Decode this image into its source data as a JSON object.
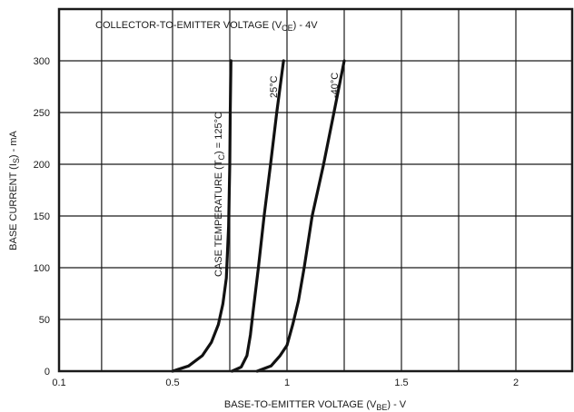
{
  "chart_data": {
    "type": "line",
    "title": "",
    "condition": {
      "label": "COLLECTOR-TO-EMITTER VOLTAGE (V",
      "subscript": "CE",
      "suffix": ") - 4V"
    },
    "xlabel": {
      "label": "BASE-TO-EMITTER VOLTAGE (V",
      "subscript": "BE",
      "suffix": ") - V"
    },
    "ylabel": {
      "label": "BASE CURRENT (I",
      "subscript": "S",
      "suffix": ") - mA"
    },
    "xlim": [
      0.1,
      2.25
    ],
    "ylim": [
      0,
      350
    ],
    "x_ticks": [
      {
        "value": 0.1,
        "label": "0.1"
      },
      {
        "value": 0.5,
        "label": "0.5"
      },
      {
        "value": 1,
        "label": "1"
      },
      {
        "value": 1.5,
        "label": "1.5"
      },
      {
        "value": 2,
        "label": "2"
      }
    ],
    "y_ticks": [
      {
        "value": 0,
        "label": "0"
      },
      {
        "value": 50,
        "label": "50"
      },
      {
        "value": 100,
        "label": "100"
      },
      {
        "value": 150,
        "label": "150"
      },
      {
        "value": 200,
        "label": "200"
      },
      {
        "value": 250,
        "label": "250"
      },
      {
        "value": 300,
        "label": "300"
      }
    ],
    "x_gridlines": [
      0.1,
      0.25,
      0.5,
      0.75,
      1,
      1.25,
      1.5,
      1.75,
      2
    ],
    "y_gridlines": [
      0,
      50,
      100,
      150,
      200,
      250,
      300
    ],
    "grid": true,
    "series": [
      {
        "label": {
          "text": "CASE TEMPERATURE (T",
          "subscript": "C",
          "suffix": ") = 125°C"
        },
        "points": [
          [
            0.5,
            0
          ],
          [
            0.57,
            5
          ],
          [
            0.63,
            15
          ],
          [
            0.67,
            28
          ],
          [
            0.7,
            45
          ],
          [
            0.72,
            65
          ],
          [
            0.735,
            90
          ],
          [
            0.745,
            140
          ],
          [
            0.75,
            200
          ],
          [
            0.752,
            250
          ],
          [
            0.755,
            300
          ]
        ]
      },
      {
        "label": {
          "text": "25°C"
        },
        "points": [
          [
            0.76,
            0
          ],
          [
            0.8,
            4
          ],
          [
            0.825,
            15
          ],
          [
            0.84,
            35
          ],
          [
            0.853,
            60
          ],
          [
            0.875,
            100
          ],
          [
            0.9,
            150
          ],
          [
            0.928,
            200
          ],
          [
            0.955,
            250
          ],
          [
            0.985,
            300
          ]
        ]
      },
      {
        "label": {
          "text": "-40°C"
        },
        "points": [
          [
            0.87,
            0
          ],
          [
            0.93,
            5
          ],
          [
            0.97,
            15
          ],
          [
            1.0,
            25
          ],
          [
            1.025,
            45
          ],
          [
            1.05,
            68
          ],
          [
            1.075,
            100
          ],
          [
            1.11,
            150
          ],
          [
            1.16,
            200
          ],
          [
            1.205,
            250
          ],
          [
            1.25,
            300
          ]
        ]
      }
    ]
  }
}
